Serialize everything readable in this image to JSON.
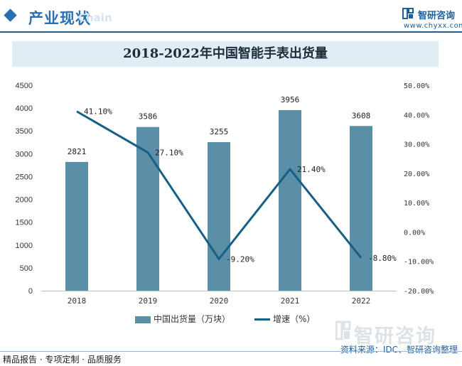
{
  "header": {
    "section_title": "产业现状",
    "watermark_text": "Chain",
    "brand_name": "智研咨询",
    "brand_url": "www.chyxx.com",
    "accent_color": "#2a6fb0"
  },
  "footer": {
    "left_text": "精品报告 · 专项定制 · 品质服务",
    "source_text": "资料来源：IDC、智研咨询整理",
    "watermark_brand": "智研咨询"
  },
  "chart_data": {
    "type": "bar",
    "title": "2018-2022年中国智能手表出货量",
    "categories": [
      "2018",
      "2019",
      "2020",
      "2021",
      "2022"
    ],
    "series": [
      {
        "name": "中国出货量（万块）",
        "type": "bar",
        "axis": "left",
        "values": [
          2821,
          3586,
          3255,
          3956,
          3608
        ],
        "labels": [
          "2821",
          "3586",
          "3255",
          "3956",
          "3608"
        ],
        "color": "#5b8fa8"
      },
      {
        "name": "增速（%）",
        "type": "line",
        "axis": "right",
        "values": [
          41.1,
          27.1,
          -9.2,
          21.4,
          -8.8
        ],
        "labels": [
          "41.10%",
          "27.10%",
          "-9.20%",
          "21.40%",
          "-8.80%"
        ],
        "color": "#166085"
      }
    ],
    "y_left": {
      "min": 0,
      "max": 4500,
      "ticks": [
        0,
        500,
        1000,
        1500,
        2000,
        2500,
        3000,
        3500,
        4000,
        4500
      ],
      "tick_labels": [
        "0",
        "500",
        "1000",
        "1500",
        "2000",
        "2500",
        "3000",
        "3500",
        "4000",
        "4500"
      ]
    },
    "y_right": {
      "min": -20,
      "max": 50,
      "ticks": [
        -20,
        -10,
        0,
        10,
        20,
        30,
        40,
        50
      ],
      "tick_labels": [
        "-20.00%",
        "-10.00%",
        "0.00%",
        "10.00%",
        "20.00%",
        "30.00%",
        "40.00%",
        "50.00%"
      ]
    },
    "grid": false,
    "legend_position": "bottom"
  }
}
